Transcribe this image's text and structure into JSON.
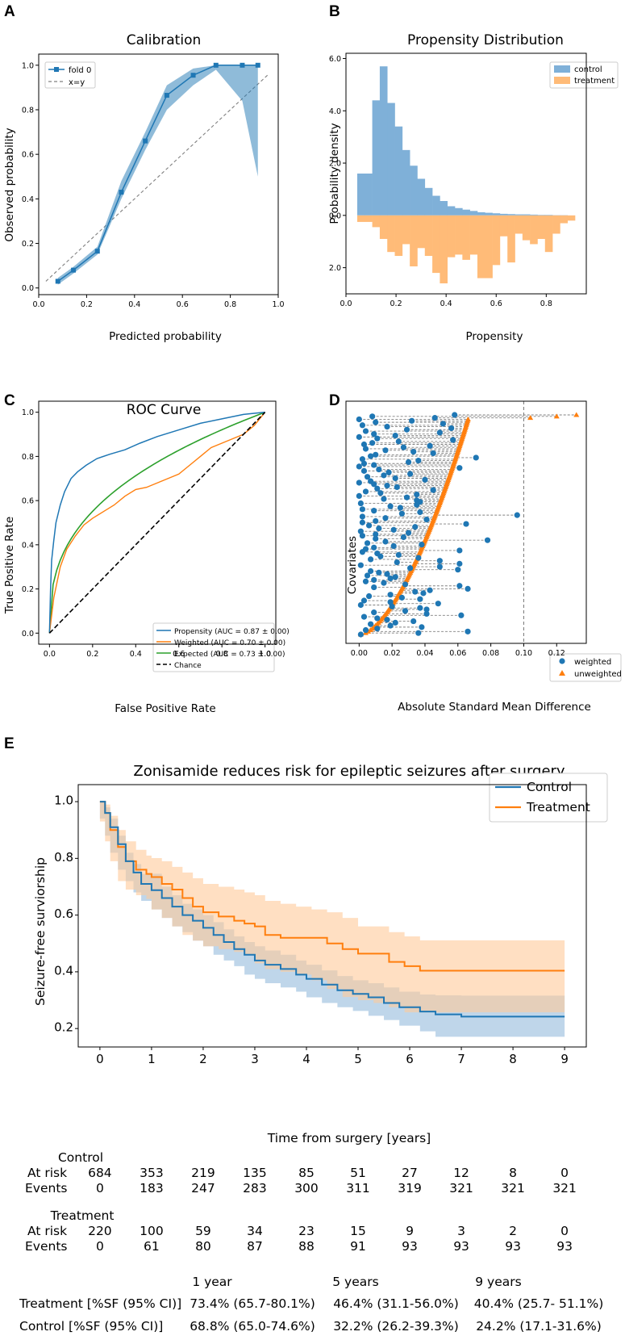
{
  "panel_labels": [
    "A",
    "B",
    "C",
    "D",
    "E"
  ],
  "chart_data": [
    {
      "id": "A",
      "type": "line",
      "title": "Calibration",
      "xlabel": "Predicted probability",
      "ylabel": "Observed probability",
      "xlim": [
        0,
        1.0
      ],
      "ylim": [
        -0.03,
        1.05
      ],
      "xticks": [
        "0.0",
        "0.2",
        "0.4",
        "0.6",
        "0.8",
        "1.0"
      ],
      "yticks": [
        "0.0",
        "0.2",
        "0.4",
        "0.6",
        "0.8",
        "1.0"
      ],
      "legend_position": "top-left",
      "series": [
        {
          "name": "fold 0",
          "color": "#1f77b4",
          "x": [
            0.08,
            0.145,
            0.245,
            0.345,
            0.445,
            0.535,
            0.645,
            0.74,
            0.85,
            0.915
          ],
          "y": [
            0.03,
            0.08,
            0.165,
            0.43,
            0.66,
            0.865,
            0.955,
            1.0,
            1.0,
            1.0
          ],
          "band_lower": [
            0.015,
            0.065,
            0.15,
            0.4,
            0.62,
            0.8,
            0.91,
            0.98,
            0.84,
            0.5
          ],
          "band_upper": [
            0.045,
            0.095,
            0.185,
            0.48,
            0.7,
            0.91,
            0.985,
            1.0,
            1.0,
            1.0
          ]
        },
        {
          "name": "x=y",
          "color": "#808080",
          "style": "dashed",
          "x": [
            0.03,
            0.96
          ],
          "y": [
            0.03,
            0.96
          ]
        }
      ]
    },
    {
      "id": "B",
      "type": "histogram",
      "title": "Propensity Distribution",
      "xlabel": "Propensity",
      "ylabel": "Probability density",
      "xlim": [
        0,
        0.96
      ],
      "ylim": [
        -3.0,
        6.2
      ],
      "xticks": [
        "0.0",
        "0.2",
        "0.4",
        "0.6",
        "0.8"
      ],
      "yticks": [
        {
          "v": 6.0,
          "l": "6.0"
        },
        {
          "v": 4.0,
          "l": "4.0"
        },
        {
          "v": 2.0,
          "l": "2.0"
        },
        {
          "v": 0.0,
          "l": "0.0"
        },
        {
          "v": -2.0,
          "l": "2.0"
        }
      ],
      "legend_position": "top-right",
      "bin_edges": [
        0.045,
        0.075,
        0.105,
        0.135,
        0.165,
        0.195,
        0.225,
        0.255,
        0.285,
        0.315,
        0.345,
        0.375,
        0.405,
        0.435,
        0.465,
        0.495,
        0.525,
        0.555,
        0.585,
        0.615,
        0.645,
        0.675,
        0.705,
        0.735,
        0.765,
        0.795,
        0.825,
        0.855,
        0.885,
        0.915
      ],
      "series": [
        {
          "name": "control",
          "color": "#7fb0d8",
          "values": [
            1.6,
            1.6,
            4.4,
            5.7,
            4.3,
            3.4,
            2.5,
            1.9,
            1.4,
            1.05,
            0.75,
            0.55,
            0.35,
            0.28,
            0.22,
            0.17,
            0.12,
            0.1,
            0.08,
            0.06,
            0.05,
            0.04,
            0.04,
            0.03,
            0.02,
            0.02,
            0.01,
            0.01,
            0.0
          ]
        },
        {
          "name": "treatment",
          "color": "#ffbb78",
          "values": [
            0.25,
            0.25,
            0.45,
            0.9,
            1.4,
            1.55,
            1.1,
            1.95,
            1.25,
            1.55,
            2.2,
            2.6,
            1.6,
            1.5,
            1.7,
            1.5,
            2.4,
            2.4,
            1.9,
            0.8,
            1.8,
            0.7,
            0.95,
            1.1,
            0.9,
            1.4,
            0.7,
            0.3,
            0.2
          ]
        }
      ]
    },
    {
      "id": "C",
      "type": "line",
      "title": "ROC Curve",
      "xlabel": "False Positive Rate",
      "ylabel": "True Positive Rate",
      "xlim": [
        -0.05,
        1.05
      ],
      "ylim": [
        -0.05,
        1.05
      ],
      "xticks": [
        "0.0",
        "0.2",
        "0.4",
        "0.6",
        "0.8",
        "1.0"
      ],
      "yticks": [
        "0.0",
        "0.2",
        "0.4",
        "0.6",
        "0.8",
        "1.0"
      ],
      "legend_position": "bottom-right",
      "series": [
        {
          "name": "Propensity (AUC = 0.87 ± 0.00)",
          "color": "#1f77b4",
          "x": [
            0,
            0.005,
            0.01,
            0.02,
            0.03,
            0.05,
            0.07,
            0.1,
            0.13,
            0.17,
            0.22,
            0.28,
            0.35,
            0.42,
            0.5,
            0.6,
            0.7,
            0.8,
            0.9,
            1.0
          ],
          "y": [
            0,
            0.2,
            0.33,
            0.42,
            0.5,
            0.58,
            0.64,
            0.7,
            0.73,
            0.76,
            0.79,
            0.81,
            0.83,
            0.86,
            0.89,
            0.92,
            0.95,
            0.97,
            0.99,
            1.0
          ]
        },
        {
          "name": "Weighted (AUC = 0.70 ± 0.00)",
          "color": "#ff7f0e",
          "x": [
            0,
            0.02,
            0.05,
            0.08,
            0.12,
            0.16,
            0.2,
            0.25,
            0.3,
            0.35,
            0.4,
            0.45,
            0.5,
            0.55,
            0.6,
            0.65,
            0.7,
            0.75,
            0.8,
            0.85,
            0.9,
            0.95,
            1.0
          ],
          "y": [
            0,
            0.16,
            0.3,
            0.38,
            0.44,
            0.49,
            0.52,
            0.55,
            0.58,
            0.62,
            0.65,
            0.66,
            0.68,
            0.7,
            0.72,
            0.76,
            0.8,
            0.84,
            0.86,
            0.88,
            0.9,
            0.94,
            1.0
          ]
        },
        {
          "name": "Expected (AUC = 0.73 ± 0.00)",
          "color": "#2ca02c",
          "curve": "concave",
          "auc": 0.73
        },
        {
          "name": "Chance",
          "color": "#000000",
          "style": "dashed",
          "x": [
            0,
            1
          ],
          "y": [
            0,
            1
          ]
        }
      ]
    },
    {
      "id": "D",
      "type": "scatter",
      "title": "",
      "xlabel": "Absolute Standard Mean Difference",
      "ylabel": "Covariates",
      "xlim": [
        -0.008,
        0.138
      ],
      "xticks": [
        "0.00",
        "0.02",
        "0.04",
        "0.06",
        "0.08",
        "0.10",
        "0.12"
      ],
      "threshold_line": 0.1,
      "legend_position": "bottom-right",
      "series": [
        {
          "name": "weighted",
          "color": "#1f77b4",
          "marker": "circle"
        },
        {
          "name": "unweighted",
          "color": "#ff7f0e",
          "marker": "triangle"
        }
      ],
      "weighted_values": [
        0.058,
        0.008,
        0.046,
        0.0,
        0.032,
        0.01,
        0.051,
        0.002,
        0.017,
        0.056,
        0.029,
        0.004,
        0.049,
        0.009,
        0.022,
        0.0,
        0.011,
        0.057,
        0.024,
        0.008,
        0.003,
        0.043,
        0.027,
        0.004,
        0.016,
        0.033,
        0.045,
        0.01,
        0.007,
        0.071,
        0.002,
        0.036,
        0.03,
        0.003,
        0.009,
        0.0,
        0.061,
        0.012,
        0.003,
        0.018,
        0.031,
        0.015,
        0.005,
        0.022,
        0.04,
        0.007,
        0.0,
        0.009,
        0.017,
        0.023,
        0.011,
        0.045,
        0.004,
        0.013,
        0.035,
        0.0,
        0.029,
        0.015,
        0.035,
        0.037,
        0.001,
        0.035,
        0.019,
        0.025,
        0.002,
        0.009,
        0.037,
        0.026,
        0.096,
        0.002,
        0.016,
        0.041,
        0.01,
        0.002,
        0.065,
        0.006,
        0.034,
        0.012,
        0.021,
        0.001,
        0.03,
        0.01,
        0.002,
        0.027,
        0.01,
        0.078,
        0.016,
        0.005,
        0.038,
        0.021,
        0.009,
        0.004,
        0.061,
        0.002,
        0.011,
        0.024,
        0.013,
        0.036,
        0.007,
        0.049,
        0.023,
        0.061,
        0.001,
        0.049,
        0.031,
        0.06,
        0.007,
        0.012,
        0.017,
        0.005,
        0.022,
        0.019,
        0.009,
        0.004,
        0.015,
        0.028,
        0.061,
        0.009,
        0.066,
        0.043,
        0.034,
        0.039,
        0.019,
        0.006,
        0.026,
        0.037,
        0.003,
        0.019,
        0.048,
        0.001,
        0.02,
        0.037,
        0.041,
        0.028,
        0.009,
        0.041,
        0.062,
        0.003,
        0.011,
        0.017,
        0.033,
        0.022,
        0.007,
        0.019,
        0.038,
        0.011,
        0.004,
        0.066,
        0.036,
        0.001
      ]
    },
    {
      "id": "E",
      "type": "line",
      "title": "Zonisamide reduces risk for epileptic seizures after surgery",
      "xlabel": "Time from surgery [years]",
      "ylabel": "Seizure-free surviorship",
      "xlim": [
        -0.42,
        9.42
      ],
      "ylim": [
        0.135,
        1.06
      ],
      "xticks": [
        "0",
        "1",
        "2",
        "3",
        "4",
        "5",
        "6",
        "7",
        "8",
        "9"
      ],
      "yticks": [
        "0.2",
        "0.4",
        "0.6",
        "0.8",
        "1.0"
      ],
      "legend_position": "top-right",
      "series": [
        {
          "name": "Control",
          "color": "#1f77b4",
          "band_color": "#aac8e3",
          "t": [
            0,
            0.1,
            0.2,
            0.35,
            0.5,
            0.65,
            0.8,
            1.0,
            1.2,
            1.4,
            1.6,
            1.8,
            2.0,
            2.2,
            2.4,
            2.6,
            2.8,
            3.0,
            3.2,
            3.5,
            3.8,
            4.0,
            4.3,
            4.6,
            4.9,
            5.2,
            5.5,
            5.8,
            6.2,
            6.5,
            7.0,
            8.0,
            9.0
          ],
          "s": [
            1.0,
            0.96,
            0.91,
            0.85,
            0.79,
            0.75,
            0.71,
            0.688,
            0.66,
            0.63,
            0.6,
            0.58,
            0.555,
            0.53,
            0.505,
            0.48,
            0.46,
            0.44,
            0.425,
            0.41,
            0.39,
            0.375,
            0.355,
            0.335,
            0.322,
            0.31,
            0.29,
            0.275,
            0.26,
            0.25,
            0.242,
            0.242,
            0.242
          ],
          "lower": [
            1.0,
            0.94,
            0.88,
            0.82,
            0.76,
            0.72,
            0.68,
            0.65,
            0.62,
            0.59,
            0.56,
            0.54,
            0.51,
            0.49,
            0.46,
            0.44,
            0.42,
            0.39,
            0.375,
            0.36,
            0.345,
            0.33,
            0.31,
            0.29,
            0.275,
            0.262,
            0.245,
            0.23,
            0.21,
            0.19,
            0.171,
            0.171,
            0.171
          ],
          "upper": [
            1.0,
            0.98,
            0.94,
            0.88,
            0.82,
            0.78,
            0.745,
            0.746,
            0.7,
            0.67,
            0.64,
            0.62,
            0.6,
            0.575,
            0.55,
            0.525,
            0.505,
            0.49,
            0.475,
            0.46,
            0.44,
            0.425,
            0.405,
            0.385,
            0.37,
            0.36,
            0.345,
            0.33,
            0.32,
            0.317,
            0.316,
            0.316,
            0.316
          ]
        },
        {
          "name": "Treatment",
          "color": "#ff7f0e",
          "band_color": "#ffc99a",
          "t": [
            0,
            0.1,
            0.2,
            0.35,
            0.5,
            0.7,
            0.9,
            1.0,
            1.2,
            1.4,
            1.6,
            1.8,
            2.0,
            2.3,
            2.6,
            2.8,
            3.0,
            3.2,
            3.5,
            3.8,
            4.1,
            4.4,
            4.7,
            5.0,
            5.3,
            5.6,
            5.9,
            6.2,
            7.0,
            8.0,
            9.0
          ],
          "s": [
            1.0,
            0.96,
            0.9,
            0.84,
            0.79,
            0.76,
            0.745,
            0.734,
            0.71,
            0.69,
            0.66,
            0.63,
            0.61,
            0.595,
            0.58,
            0.57,
            0.56,
            0.53,
            0.52,
            0.52,
            0.52,
            0.5,
            0.48,
            0.464,
            0.464,
            0.435,
            0.42,
            0.404,
            0.404,
            0.404,
            0.404
          ],
          "lower": [
            1.0,
            0.93,
            0.86,
            0.79,
            0.72,
            0.69,
            0.67,
            0.657,
            0.62,
            0.59,
            0.56,
            0.53,
            0.51,
            0.49,
            0.48,
            0.47,
            0.46,
            0.43,
            0.41,
            0.4,
            0.39,
            0.37,
            0.34,
            0.311,
            0.3,
            0.29,
            0.275,
            0.257,
            0.257,
            0.257,
            0.257
          ],
          "upper": [
            1.0,
            0.99,
            0.95,
            0.9,
            0.86,
            0.83,
            0.81,
            0.801,
            0.79,
            0.77,
            0.75,
            0.73,
            0.71,
            0.7,
            0.69,
            0.68,
            0.67,
            0.65,
            0.64,
            0.63,
            0.62,
            0.61,
            0.59,
            0.56,
            0.56,
            0.54,
            0.525,
            0.511,
            0.511,
            0.511,
            0.511
          ]
        }
      ]
    }
  ],
  "risk_table": {
    "times": [
      "0",
      "1",
      "2",
      "3",
      "4",
      "5",
      "6",
      "7",
      "8",
      "9"
    ],
    "groups": [
      {
        "name": "Control",
        "at_risk_label": "At risk",
        "events_label": "Events",
        "at_risk": [
          "684",
          "353",
          "219",
          "135",
          "85",
          "51",
          "27",
          "12",
          "8",
          "0"
        ],
        "events": [
          "0",
          "183",
          "247",
          "283",
          "300",
          "311",
          "319",
          "321",
          "321",
          "321"
        ]
      },
      {
        "name": "Treatment",
        "at_risk_label": "At risk",
        "events_label": "Events",
        "at_risk": [
          "220",
          "100",
          "59",
          "34",
          "23",
          "15",
          "9",
          "3",
          "2",
          "0"
        ],
        "events": [
          "0",
          "61",
          "80",
          "87",
          "88",
          "91",
          "93",
          "93",
          "93",
          "93"
        ]
      }
    ]
  },
  "summary_table": {
    "headers": [
      "1 year",
      "5 years",
      "9 years"
    ],
    "rows": [
      {
        "label": "Treatment [%SF (95% CI)]",
        "values": [
          "73.4% (65.7-80.1%)",
          "46.4% (31.1-56.0%)",
          "40.4% (25.7- 51.1%)"
        ]
      },
      {
        "label": "Control [%SF (95% CI)]",
        "values": [
          "68.8% (65.0-74.6%)",
          "32.2% (26.2-39.3%)",
          "24.2% (17.1-31.6%)"
        ]
      }
    ]
  }
}
